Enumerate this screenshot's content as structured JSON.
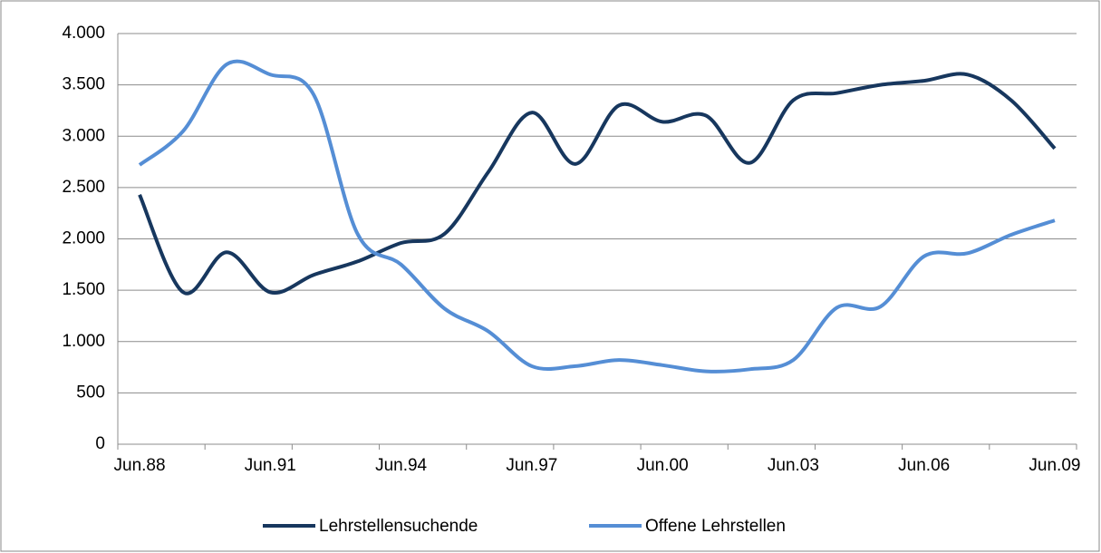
{
  "chart_data": {
    "type": "line",
    "categories": [
      "Jun.88",
      null,
      null,
      "Jun.91",
      null,
      null,
      "Jun.94",
      null,
      null,
      "Jun.97",
      null,
      null,
      "Jun.00",
      null,
      null,
      "Jun.03",
      null,
      null,
      "Jun.06",
      null,
      null,
      "Jun.09"
    ],
    "series": [
      {
        "name": "Lehrstellensuchende",
        "color": "#17375e",
        "values": [
          2430,
          1480,
          1870,
          1480,
          1650,
          1780,
          1960,
          2050,
          2650,
          3230,
          2730,
          3300,
          3140,
          3200,
          2740,
          3350,
          3420,
          3500,
          3540,
          3600,
          3350,
          2880
        ]
      },
      {
        "name": "Offene Lehrstellen",
        "color": "#558ed5",
        "values": [
          2720,
          3050,
          3700,
          3600,
          3400,
          2050,
          1750,
          1320,
          1100,
          760,
          760,
          820,
          770,
          710,
          730,
          820,
          1330,
          1340,
          1830,
          1860,
          2040,
          2180
        ]
      }
    ],
    "ylim": [
      0,
      4000
    ],
    "yticks": [
      0,
      500,
      {
        "value": 1000,
        "label": "1.000"
      },
      {
        "value": 1500,
        "label": "1.500"
      },
      {
        "value": 2000,
        "label": "2.000"
      },
      {
        "value": 2500,
        "label": "2.500"
      },
      {
        "value": 3000,
        "label": "3.000"
      },
      {
        "value": 3500,
        "label": "3.500"
      },
      {
        "value": 4000,
        "label": "4.000"
      }
    ],
    "grid": true,
    "legend": "bottom"
  }
}
